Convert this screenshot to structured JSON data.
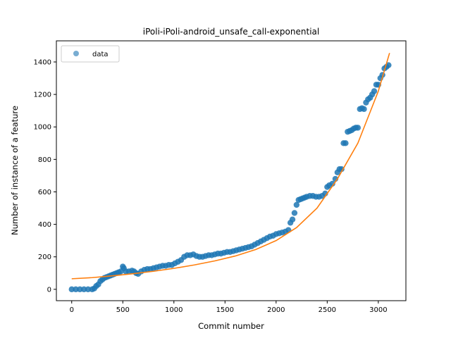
{
  "chart_data": {
    "type": "scatter",
    "title": "iPoli-iPoli-android_unsafe_call-exponential",
    "xlabel": "Commit number",
    "ylabel": "Number of instance of a feature",
    "xlim": [
      -150,
      3270
    ],
    "ylim": [
      -70,
      1530
    ],
    "xticks": [
      0,
      500,
      1000,
      1500,
      2000,
      2500,
      3000
    ],
    "yticks": [
      0,
      200,
      400,
      600,
      800,
      1000,
      1200,
      1400
    ],
    "grid": false,
    "legend": {
      "placement": "top-left",
      "entries": [
        "data"
      ]
    },
    "colors": {
      "data": "#1f77b4",
      "fit": "#ff7f0e"
    },
    "series": [
      {
        "name": "data",
        "kind": "scatter",
        "points": [
          [
            0,
            0
          ],
          [
            40,
            0
          ],
          [
            80,
            0
          ],
          [
            120,
            0
          ],
          [
            160,
            0
          ],
          [
            200,
            0
          ],
          [
            220,
            5
          ],
          [
            240,
            20
          ],
          [
            260,
            30
          ],
          [
            280,
            50
          ],
          [
            300,
            60
          ],
          [
            320,
            70
          ],
          [
            340,
            75
          ],
          [
            360,
            80
          ],
          [
            380,
            85
          ],
          [
            400,
            90
          ],
          [
            420,
            95
          ],
          [
            440,
            100
          ],
          [
            460,
            105
          ],
          [
            480,
            110
          ],
          [
            500,
            140
          ],
          [
            510,
            130
          ],
          [
            530,
            110
          ],
          [
            560,
            110
          ],
          [
            590,
            115
          ],
          [
            610,
            110
          ],
          [
            630,
            100
          ],
          [
            650,
            95
          ],
          [
            680,
            110
          ],
          [
            710,
            120
          ],
          [
            740,
            125
          ],
          [
            770,
            125
          ],
          [
            800,
            130
          ],
          [
            830,
            135
          ],
          [
            860,
            140
          ],
          [
            890,
            145
          ],
          [
            920,
            145
          ],
          [
            950,
            150
          ],
          [
            980,
            150
          ],
          [
            1010,
            160
          ],
          [
            1040,
            170
          ],
          [
            1070,
            180
          ],
          [
            1100,
            200
          ],
          [
            1130,
            210
          ],
          [
            1160,
            210
          ],
          [
            1190,
            215
          ],
          [
            1220,
            205
          ],
          [
            1250,
            200
          ],
          [
            1280,
            200
          ],
          [
            1310,
            205
          ],
          [
            1340,
            210
          ],
          [
            1370,
            210
          ],
          [
            1400,
            215
          ],
          [
            1430,
            220
          ],
          [
            1460,
            220
          ],
          [
            1490,
            225
          ],
          [
            1520,
            230
          ],
          [
            1550,
            230
          ],
          [
            1580,
            235
          ],
          [
            1610,
            240
          ],
          [
            1640,
            245
          ],
          [
            1670,
            250
          ],
          [
            1700,
            255
          ],
          [
            1730,
            260
          ],
          [
            1760,
            265
          ],
          [
            1790,
            275
          ],
          [
            1820,
            285
          ],
          [
            1850,
            295
          ],
          [
            1880,
            305
          ],
          [
            1910,
            315
          ],
          [
            1940,
            325
          ],
          [
            1970,
            330
          ],
          [
            2000,
            340
          ],
          [
            2030,
            345
          ],
          [
            2060,
            350
          ],
          [
            2090,
            355
          ],
          [
            2120,
            365
          ],
          [
            2140,
            410
          ],
          [
            2160,
            430
          ],
          [
            2180,
            470
          ],
          [
            2200,
            520
          ],
          [
            2220,
            550
          ],
          [
            2240,
            555
          ],
          [
            2260,
            560
          ],
          [
            2280,
            565
          ],
          [
            2300,
            570
          ],
          [
            2330,
            575
          ],
          [
            2360,
            575
          ],
          [
            2390,
            570
          ],
          [
            2420,
            570
          ],
          [
            2450,
            575
          ],
          [
            2480,
            590
          ],
          [
            2500,
            630
          ],
          [
            2520,
            640
          ],
          [
            2550,
            650
          ],
          [
            2580,
            680
          ],
          [
            2600,
            720
          ],
          [
            2620,
            740
          ],
          [
            2640,
            740
          ],
          [
            2660,
            900
          ],
          [
            2680,
            900
          ],
          [
            2700,
            970
          ],
          [
            2720,
            975
          ],
          [
            2740,
            980
          ],
          [
            2760,
            990
          ],
          [
            2780,
            995
          ],
          [
            2800,
            995
          ],
          [
            2820,
            1110
          ],
          [
            2840,
            1115
          ],
          [
            2860,
            1110
          ],
          [
            2880,
            1150
          ],
          [
            2900,
            1170
          ],
          [
            2920,
            1180
          ],
          [
            2940,
            1200
          ],
          [
            2960,
            1220
          ],
          [
            2980,
            1260
          ],
          [
            3000,
            1260
          ],
          [
            3020,
            1300
          ],
          [
            3040,
            1320
          ],
          [
            3060,
            1360
          ],
          [
            3080,
            1370
          ],
          [
            3100,
            1380
          ]
        ]
      },
      {
        "kind": "line",
        "x": [
          0,
          200,
          400,
          600,
          800,
          1000,
          1200,
          1400,
          1600,
          1800,
          2000,
          2200,
          2400,
          2600,
          2800,
          3000,
          3110
        ],
        "y": [
          65,
          72,
          83,
          96,
          111,
          129,
          150,
          175,
          205,
          245,
          300,
          380,
          500,
          680,
          900,
          1220,
          1455
        ]
      }
    ]
  }
}
